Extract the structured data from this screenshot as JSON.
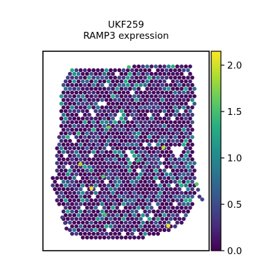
{
  "chart_data": {
    "type": "scatter",
    "subtype": "spatial-hexbin",
    "title_lines": [
      "UKF259",
      "RAMP3 expression"
    ],
    "xlabel": "",
    "ylabel": "",
    "grid": false,
    "colormap": "viridis",
    "colorbar": {
      "range": [
        0.0,
        2.15
      ],
      "ticks": [
        0.0,
        0.5,
        1.0,
        1.5,
        2.0
      ],
      "tick_labels": [
        "0.0",
        "0.5",
        "1.0",
        "1.5",
        "2.0"
      ]
    },
    "value_distribution": {
      "min": 0.0,
      "max": 2.15,
      "typical_range": [
        0.0,
        0.6
      ],
      "highlight_values": [
        2.1,
        1.9,
        1.7,
        1.6,
        1.6,
        1.5,
        1.5,
        1.4
      ]
    }
  }
}
